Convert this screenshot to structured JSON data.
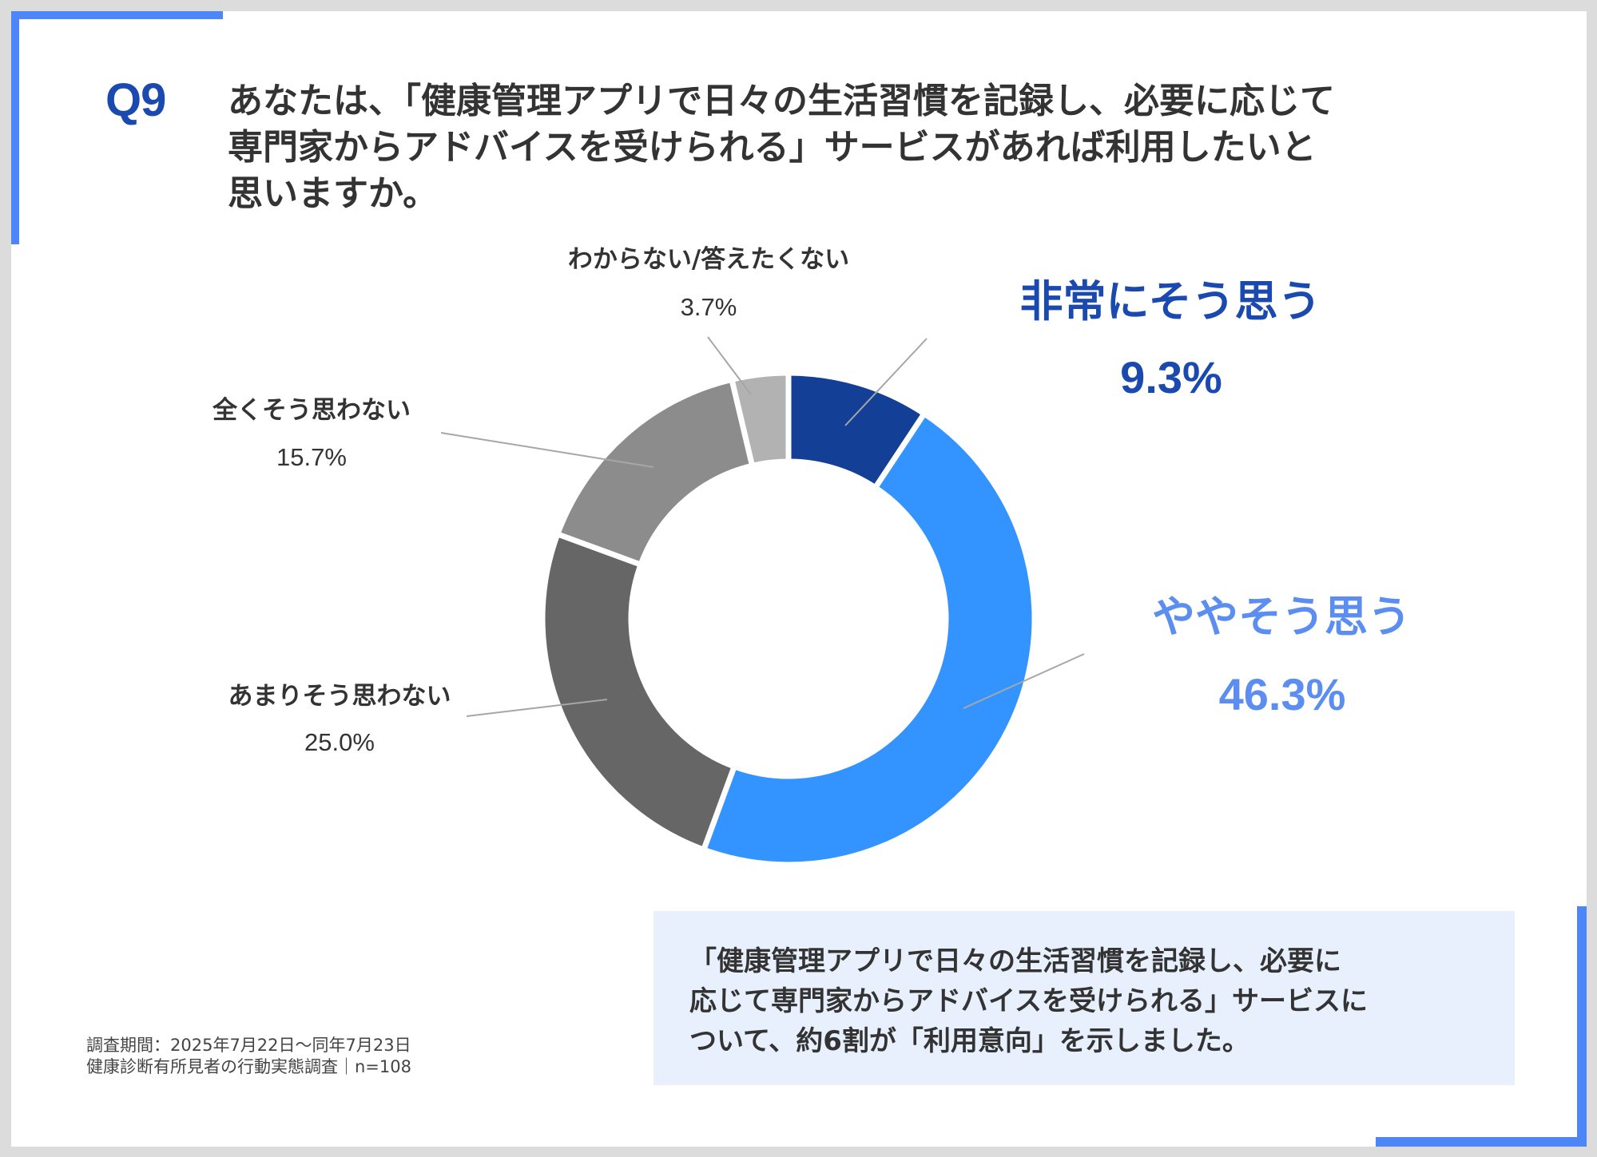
{
  "question": {
    "number": "Q9",
    "lines": [
      "あなたは、「健康管理アプリで日々の生活習慣を記録し、必要に応じて",
      "専門家からアドバイスを受けられる」サービスがあれば利用したいと",
      "思いますか。"
    ]
  },
  "chart_data": {
    "type": "pie",
    "title": "あなたは、「健康管理アプリで日々の生活習慣を記録し、必要に応じて専門家からアドバイスを受けられる」サービスがあれば利用したいと思いますか。",
    "categories": [
      "非常にそう思う",
      "ややそう思う",
      "あまりそう思わない",
      "全くそう思わない",
      "わからない/答えたくない"
    ],
    "values": [
      9.3,
      46.3,
      25.0,
      15.7,
      3.7
    ],
    "value_labels": [
      "9.3%",
      "46.3%",
      "25.0%",
      "15.7%",
      "3.7%"
    ],
    "colors": [
      "#143f97",
      "#3393ff",
      "#666666",
      "#8c8c8c",
      "#b2b2b2"
    ],
    "label_colors": [
      "#1a4ab0",
      "#5b8ef0",
      "#333333",
      "#333333",
      "#333333"
    ],
    "donut": true
  },
  "note": {
    "period": "調査期間：2025年7月22日～同年7月23日",
    "survey": "健康診断有所見者の行動実態調査｜n=108"
  },
  "summary": {
    "lines": [
      "「健康管理アプリで日々の生活習慣を記録し、必要に",
      "応じて専門家からアドバイスを受けられる」サービスに",
      "ついて、約6割が「利用意向」を示しました。"
    ]
  }
}
